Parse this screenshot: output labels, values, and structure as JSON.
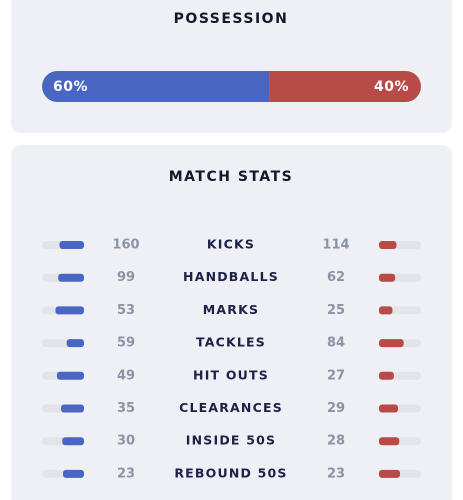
{
  "possession": {
    "title": "POSSESSION",
    "home": 60,
    "home_label": "60%",
    "away": 40,
    "away_label": "40%"
  },
  "match_stats": {
    "title": "MATCH STATS",
    "rows": [
      {
        "label": "KICKS",
        "home": 160,
        "away": 114
      },
      {
        "label": "HANDBALLS",
        "home": 99,
        "away": 62
      },
      {
        "label": "MARKS",
        "home": 53,
        "away": 25
      },
      {
        "label": "TACKLES",
        "home": 59,
        "away": 84
      },
      {
        "label": "HIT OUTS",
        "home": 49,
        "away": 27
      },
      {
        "label": "CLEARANCES",
        "home": 35,
        "away": 29
      },
      {
        "label": "INSIDE 50S",
        "home": 30,
        "away": 28
      },
      {
        "label": "REBOUND 50S",
        "home": 23,
        "away": 23
      }
    ]
  },
  "colors": {
    "home": "#4a66c3",
    "away": "#b84a47"
  }
}
